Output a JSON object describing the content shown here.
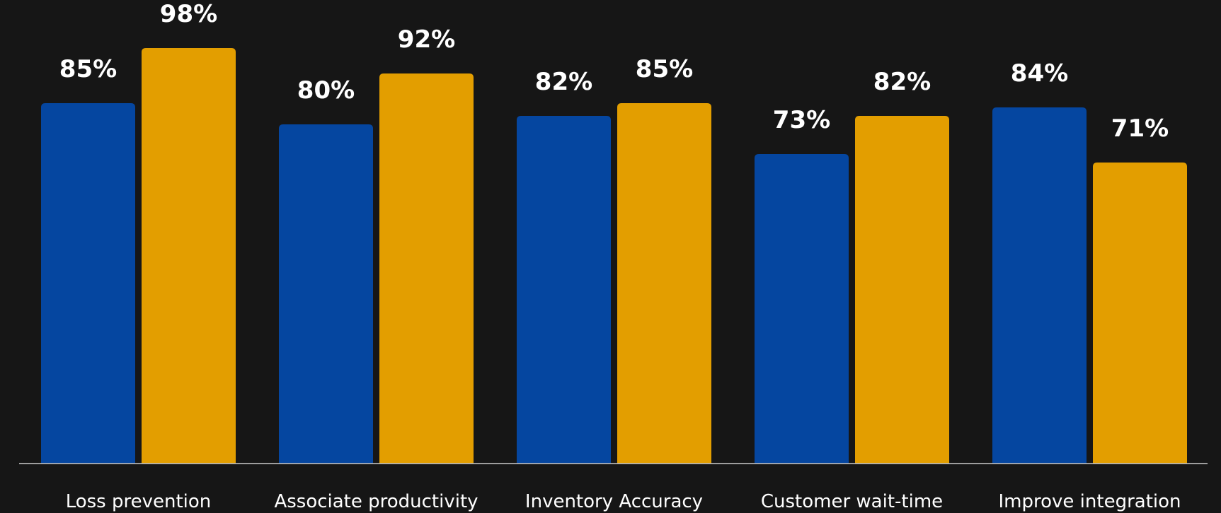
{
  "colors": {
    "background": "#161616",
    "series_1": "#0546A0",
    "series_2": "#E39E00",
    "text": "#FFFFFF",
    "axis": "#CCCCCC"
  },
  "chart_data": {
    "type": "bar",
    "title": "",
    "xlabel": "",
    "ylabel": "",
    "grid": false,
    "legend": "none",
    "ylim": [
      0,
      100
    ],
    "categories": [
      "Loss prevention",
      "Associate productivity",
      "Inventory Accuracy",
      "Customer wait-time",
      "Improve integration"
    ],
    "series": [
      {
        "values": [
          85,
          80,
          82,
          73,
          84
        ],
        "labels": [
          "85%",
          "80%",
          "82%",
          "73%",
          "84%"
        ],
        "color": "#0546A0"
      },
      {
        "values": [
          98,
          92,
          85,
          82,
          71
        ],
        "labels": [
          "98%",
          "92%",
          "85%",
          "82%",
          "71%"
        ],
        "color": "#E39E00"
      }
    ]
  }
}
